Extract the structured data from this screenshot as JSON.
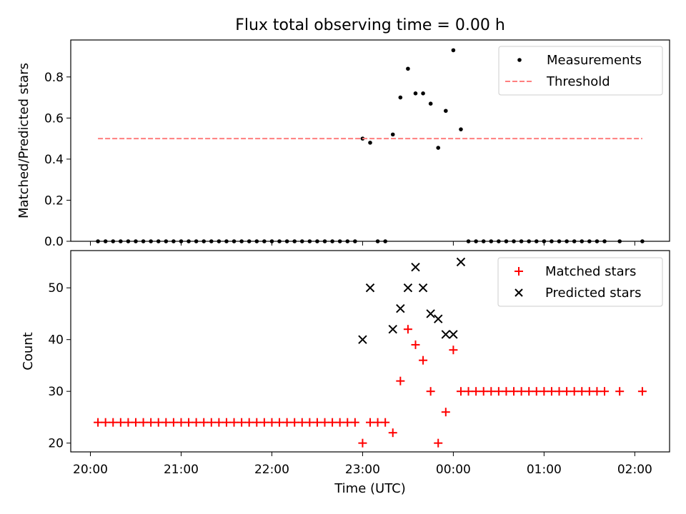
{
  "chart_data": [
    {
      "type": "scatter",
      "title": "Flux total observing time = 0.00 h",
      "xlabel": "",
      "ylabel": "Matched/Predicted stars",
      "ylim": [
        0,
        0.98
      ],
      "yticks": [
        0.0,
        0.2,
        0.4,
        0.6,
        0.8
      ],
      "ytick_labels": [
        "0.0",
        "0.2",
        "0.4",
        "0.6",
        "0.8"
      ],
      "xlim": [
        "19:47",
        "02:23"
      ],
      "xticks": [
        "20:00",
        "21:00",
        "22:00",
        "23:00",
        "00:00",
        "01:00",
        "02:00"
      ],
      "grid": false,
      "legend_position": "top-right",
      "series": [
        {
          "name": "Measurements",
          "style": "scatter",
          "color": "#000000",
          "points": [
            [
              "20:05",
              0
            ],
            [
              "20:10",
              0
            ],
            [
              "20:15",
              0
            ],
            [
              "20:20",
              0
            ],
            [
              "20:25",
              0
            ],
            [
              "20:30",
              0
            ],
            [
              "20:35",
              0
            ],
            [
              "20:40",
              0
            ],
            [
              "20:45",
              0
            ],
            [
              "20:50",
              0
            ],
            [
              "20:55",
              0
            ],
            [
              "21:00",
              0
            ],
            [
              "21:05",
              0
            ],
            [
              "21:10",
              0
            ],
            [
              "21:15",
              0
            ],
            [
              "21:20",
              0
            ],
            [
              "21:25",
              0
            ],
            [
              "21:30",
              0
            ],
            [
              "21:35",
              0
            ],
            [
              "21:40",
              0
            ],
            [
              "21:45",
              0
            ],
            [
              "21:50",
              0
            ],
            [
              "21:55",
              0
            ],
            [
              "22:00",
              0
            ],
            [
              "22:05",
              0
            ],
            [
              "22:10",
              0
            ],
            [
              "22:15",
              0
            ],
            [
              "22:20",
              0
            ],
            [
              "22:25",
              0
            ],
            [
              "22:30",
              0
            ],
            [
              "22:35",
              0
            ],
            [
              "22:40",
              0
            ],
            [
              "22:45",
              0
            ],
            [
              "22:50",
              0
            ],
            [
              "22:55",
              0
            ],
            [
              "23:00",
              0.5
            ],
            [
              "23:05",
              0.48
            ],
            [
              "23:10",
              0
            ],
            [
              "23:15",
              0
            ],
            [
              "23:20",
              0.52
            ],
            [
              "23:25",
              0.7
            ],
            [
              "23:30",
              0.84
            ],
            [
              "23:35",
              0.72
            ],
            [
              "23:40",
              0.72
            ],
            [
              "23:45",
              0.67
            ],
            [
              "23:50",
              0.455
            ],
            [
              "23:55",
              0.635
            ],
            [
              "00:00",
              0.93
            ],
            [
              "00:05",
              0.545
            ],
            [
              "00:10",
              0
            ],
            [
              "00:15",
              0
            ],
            [
              "00:20",
              0
            ],
            [
              "00:25",
              0
            ],
            [
              "00:30",
              0
            ],
            [
              "00:35",
              0
            ],
            [
              "00:40",
              0
            ],
            [
              "00:45",
              0
            ],
            [
              "00:50",
              0
            ],
            [
              "00:55",
              0
            ],
            [
              "01:00",
              0
            ],
            [
              "01:05",
              0
            ],
            [
              "01:10",
              0
            ],
            [
              "01:15",
              0
            ],
            [
              "01:20",
              0
            ],
            [
              "01:25",
              0
            ],
            [
              "01:30",
              0
            ],
            [
              "01:35",
              0
            ],
            [
              "01:40",
              0
            ],
            [
              "01:50",
              0
            ],
            [
              "02:05",
              0
            ]
          ]
        },
        {
          "name": "Threshold",
          "style": "dashed-line",
          "color": "#ff7f7f",
          "points": [
            [
              "20:05",
              0.5
            ],
            [
              "02:05",
              0.5
            ]
          ]
        }
      ]
    },
    {
      "type": "scatter",
      "title": "",
      "xlabel": "Time (UTC)",
      "ylabel": "Count",
      "ylim": [
        18.3,
        57.2
      ],
      "yticks": [
        20,
        30,
        40,
        50
      ],
      "ytick_labels": [
        "20",
        "30",
        "40",
        "50"
      ],
      "xlim": [
        "19:47",
        "02:23"
      ],
      "xticks": [
        "20:00",
        "21:00",
        "22:00",
        "23:00",
        "00:00",
        "01:00",
        "02:00"
      ],
      "xtick_labels": [
        "20:00",
        "21:00",
        "22:00",
        "23:00",
        "00:00",
        "01:00",
        "02:00"
      ],
      "grid": false,
      "legend_position": "top-right",
      "series": [
        {
          "name": "Matched stars",
          "style": "plus",
          "color": "#ff0000",
          "points": [
            [
              "20:05",
              24
            ],
            [
              "20:10",
              24
            ],
            [
              "20:15",
              24
            ],
            [
              "20:20",
              24
            ],
            [
              "20:25",
              24
            ],
            [
              "20:30",
              24
            ],
            [
              "20:35",
              24
            ],
            [
              "20:40",
              24
            ],
            [
              "20:45",
              24
            ],
            [
              "20:50",
              24
            ],
            [
              "20:55",
              24
            ],
            [
              "21:00",
              24
            ],
            [
              "21:05",
              24
            ],
            [
              "21:10",
              24
            ],
            [
              "21:15",
              24
            ],
            [
              "21:20",
              24
            ],
            [
              "21:25",
              24
            ],
            [
              "21:30",
              24
            ],
            [
              "21:35",
              24
            ],
            [
              "21:40",
              24
            ],
            [
              "21:45",
              24
            ],
            [
              "21:50",
              24
            ],
            [
              "21:55",
              24
            ],
            [
              "22:00",
              24
            ],
            [
              "22:05",
              24
            ],
            [
              "22:10",
              24
            ],
            [
              "22:15",
              24
            ],
            [
              "22:20",
              24
            ],
            [
              "22:25",
              24
            ],
            [
              "22:30",
              24
            ],
            [
              "22:35",
              24
            ],
            [
              "22:40",
              24
            ],
            [
              "22:45",
              24
            ],
            [
              "22:50",
              24
            ],
            [
              "22:55",
              24
            ],
            [
              "23:00",
              20
            ],
            [
              "23:05",
              24
            ],
            [
              "23:10",
              24
            ],
            [
              "23:15",
              24
            ],
            [
              "23:20",
              22
            ],
            [
              "23:25",
              32
            ],
            [
              "23:30",
              42
            ],
            [
              "23:35",
              39
            ],
            [
              "23:40",
              36
            ],
            [
              "23:45",
              30
            ],
            [
              "23:50",
              20
            ],
            [
              "23:55",
              26
            ],
            [
              "00:00",
              38
            ],
            [
              "00:05",
              30
            ],
            [
              "00:10",
              30
            ],
            [
              "00:15",
              30
            ],
            [
              "00:20",
              30
            ],
            [
              "00:25",
              30
            ],
            [
              "00:30",
              30
            ],
            [
              "00:35",
              30
            ],
            [
              "00:40",
              30
            ],
            [
              "00:45",
              30
            ],
            [
              "00:50",
              30
            ],
            [
              "00:55",
              30
            ],
            [
              "01:00",
              30
            ],
            [
              "01:05",
              30
            ],
            [
              "01:10",
              30
            ],
            [
              "01:15",
              30
            ],
            [
              "01:20",
              30
            ],
            [
              "01:25",
              30
            ],
            [
              "01:30",
              30
            ],
            [
              "01:35",
              30
            ],
            [
              "01:40",
              30
            ],
            [
              "01:50",
              30
            ],
            [
              "02:05",
              30
            ]
          ]
        },
        {
          "name": "Predicted stars",
          "style": "x",
          "color": "#000000",
          "points": [
            [
              "23:00",
              40
            ],
            [
              "23:05",
              50
            ],
            [
              "23:20",
              42
            ],
            [
              "23:25",
              46
            ],
            [
              "23:30",
              50
            ],
            [
              "23:35",
              54
            ],
            [
              "23:40",
              50
            ],
            [
              "23:45",
              45
            ],
            [
              "23:50",
              44
            ],
            [
              "23:55",
              41
            ],
            [
              "00:00",
              41
            ],
            [
              "00:05",
              55
            ]
          ]
        }
      ]
    }
  ]
}
